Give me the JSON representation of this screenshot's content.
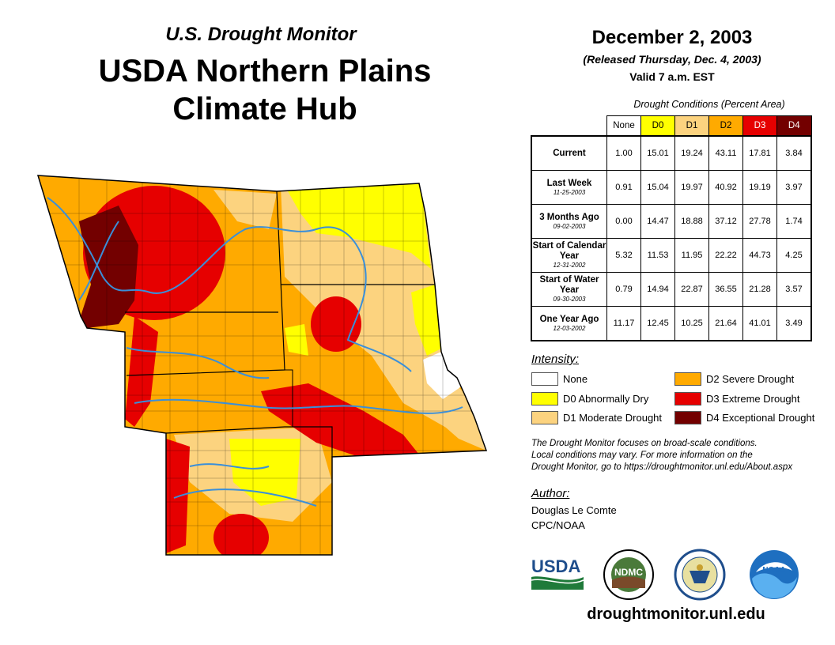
{
  "header": {
    "subtitle": "U.S. Drought Monitor",
    "title_line1": "USDA Northern Plains",
    "title_line2": "Climate Hub"
  },
  "release": {
    "date": "December 2, 2003",
    "released": "(Released Thursday, Dec. 4, 2003)",
    "valid": "Valid 7 a.m. EST"
  },
  "table": {
    "caption": "Drought Conditions (Percent Area)",
    "columns": [
      "None",
      "D0",
      "D1",
      "D2",
      "D3",
      "D4"
    ],
    "column_colors": [
      "#ffffff",
      "#ffff00",
      "#fcd37f",
      "#ffaa00",
      "#e60000",
      "#730000"
    ],
    "rows": [
      {
        "label": "Current",
        "sublabel": "",
        "values": [
          "1.00",
          "15.01",
          "19.24",
          "43.11",
          "17.81",
          "3.84"
        ]
      },
      {
        "label": "Last Week",
        "sublabel": "11-25-2003",
        "values": [
          "0.91",
          "15.04",
          "19.97",
          "40.92",
          "19.19",
          "3.97"
        ]
      },
      {
        "label": "3 Months Ago",
        "sublabel": "09-02-2003",
        "values": [
          "0.00",
          "14.47",
          "18.88",
          "37.12",
          "27.78",
          "1.74"
        ]
      },
      {
        "label": "Start of Calendar Year",
        "sublabel": "12-31-2002",
        "values": [
          "5.32",
          "11.53",
          "11.95",
          "22.22",
          "44.73",
          "4.25"
        ]
      },
      {
        "label": "Start of Water Year",
        "sublabel": "09-30-2003",
        "values": [
          "0.79",
          "14.94",
          "22.87",
          "36.55",
          "21.28",
          "3.57"
        ]
      },
      {
        "label": "One Year Ago",
        "sublabel": "12-03-2002",
        "values": [
          "11.17",
          "12.45",
          "10.25",
          "21.64",
          "41.01",
          "3.49"
        ]
      }
    ]
  },
  "legend": {
    "title": "Intensity:",
    "items": [
      {
        "label": "None",
        "color": "#ffffff"
      },
      {
        "label": "D0 Abnormally Dry",
        "color": "#ffff00"
      },
      {
        "label": "D1 Moderate Drought",
        "color": "#fcd37f"
      },
      {
        "label": "D2 Severe Drought",
        "color": "#ffaa00"
      },
      {
        "label": "D3 Extreme Drought",
        "color": "#e60000"
      },
      {
        "label": "D4 Exceptional Drought",
        "color": "#730000"
      }
    ]
  },
  "note": {
    "line1": "The Drought Monitor focuses on broad-scale conditions.",
    "line2": "Local conditions may vary. For more information on the",
    "line3": "Drought Monitor, go to https://droughtmonitor.unl.edu/About.aspx"
  },
  "author": {
    "title": "Author:",
    "name": "Douglas Le Comte",
    "org": "CPC/NOAA"
  },
  "logos": {
    "usda": "USDA",
    "ndmc": "NDMC",
    "noaa": "NOAA"
  },
  "website": "droughtmonitor.unl.edu",
  "colors": {
    "river": "#3a8fd9",
    "border": "#000000"
  }
}
